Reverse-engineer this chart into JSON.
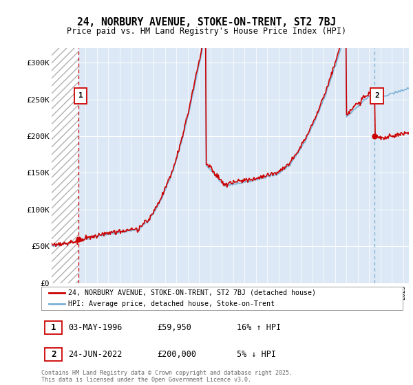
{
  "title": "24, NORBURY AVENUE, STOKE-ON-TRENT, ST2 7BJ",
  "subtitle": "Price paid vs. HM Land Registry's House Price Index (HPI)",
  "ylim": [
    0,
    320000
  ],
  "yticks": [
    0,
    50000,
    100000,
    150000,
    200000,
    250000,
    300000
  ],
  "ytick_labels": [
    "£0",
    "£50K",
    "£100K",
    "£150K",
    "£200K",
    "£250K",
    "£300K"
  ],
  "legend_line1": "24, NORBURY AVENUE, STOKE-ON-TRENT, ST2 7BJ (detached house)",
  "legend_line2": "HPI: Average price, detached house, Stoke-on-Trent",
  "annotation1_label": "1",
  "annotation1_date": "03-MAY-1996",
  "annotation1_price": "£59,950",
  "annotation1_hpi": "16% ↑ HPI",
  "annotation2_label": "2",
  "annotation2_date": "24-JUN-2022",
  "annotation2_price": "£200,000",
  "annotation2_hpi": "5% ↓ HPI",
  "footer": "Contains HM Land Registry data © Crown copyright and database right 2025.\nThis data is licensed under the Open Government Licence v3.0.",
  "line_color_red": "#cc0000",
  "line_color_blue": "#7ab0d4",
  "bg_color": "#dce8f5",
  "grid_color": "#ffffff",
  "annotation_box_color": "#cc0000",
  "sale1_year": 1996.37,
  "sale1_price": 59950,
  "sale2_year": 2022.48,
  "sale2_price": 200000,
  "xmin": 1994.0,
  "xmax": 2025.5
}
